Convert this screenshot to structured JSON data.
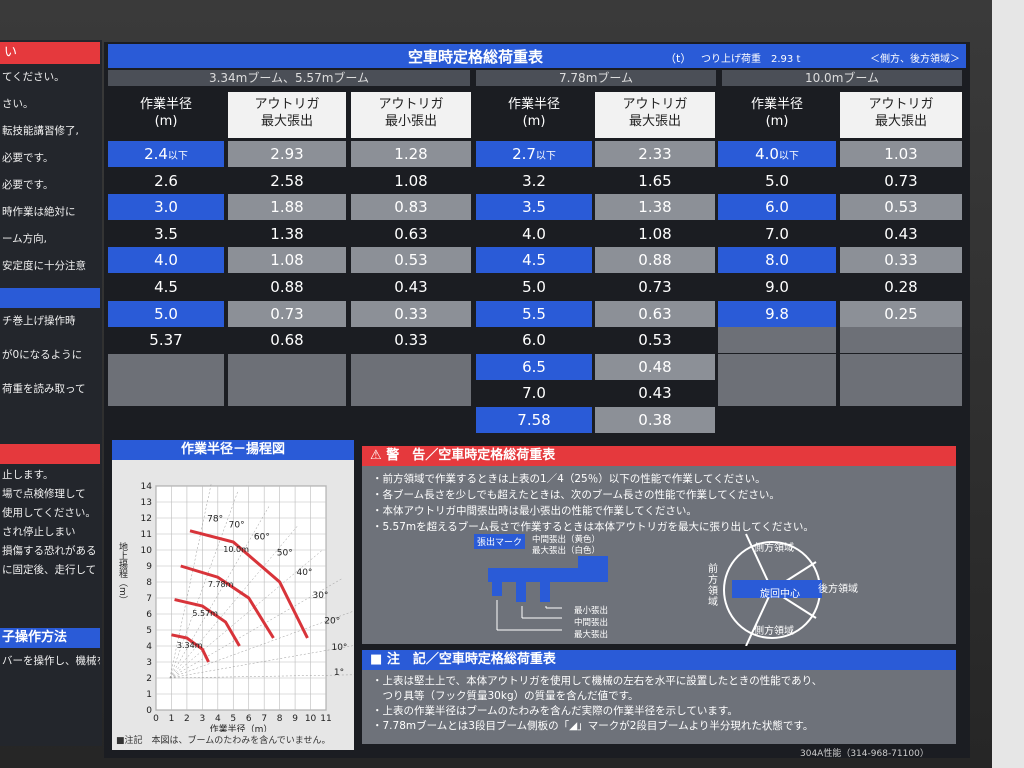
{
  "left_panel": {
    "top_header": "い",
    "lines_top": [
      "てください。",
      "さい。",
      "転技能講習修了,",
      "必要です。",
      "必要です。",
      "時作業は絶対に",
      "ーム方向,",
      "安定度に十分注意"
    ],
    "bar_mid": "",
    "lines_mid": [
      "チ巻上げ操作時",
      "が0になるように",
      "荷重を読み取って"
    ],
    "lines_bot": [
      "止します。",
      "場で点検修理して",
      "使用してください。",
      "され停止しまい",
      "損傷する恐れがある",
      "に固定後、走行して"
    ],
    "bar_bot": "子操作方法",
    "lines_last": [
      "バーを操作し、機械を"
    ]
  },
  "title": {
    "main": "空車時定格総荷重表",
    "unit": "（t）",
    "hook": "つり上げ荷重　2.93 t",
    "area": "＜側方、後方領域＞"
  },
  "sections": [
    "3.34mブーム、5.57mブーム",
    "7.78mブーム",
    "10.0mブーム"
  ],
  "headers": {
    "radius": [
      "作業半径",
      "(m)"
    ],
    "out_max": [
      "アウトリガ",
      "最大張出"
    ],
    "out_min": [
      "アウトリガ",
      "最小張出"
    ]
  },
  "table1": {
    "rows": [
      {
        "r": "2.4",
        "suf": "以下",
        "max": "2.93",
        "min": "1.28"
      },
      {
        "r": "2.6",
        "suf": "",
        "max": "2.58",
        "min": "1.08"
      },
      {
        "r": "3.0",
        "suf": "",
        "max": "1.88",
        "min": "0.83"
      },
      {
        "r": "3.5",
        "suf": "",
        "max": "1.38",
        "min": "0.63"
      },
      {
        "r": "4.0",
        "suf": "",
        "max": "1.08",
        "min": "0.53"
      },
      {
        "r": "4.5",
        "suf": "",
        "max": "0.88",
        "min": "0.43"
      },
      {
        "r": "5.0",
        "suf": "",
        "max": "0.73",
        "min": "0.33"
      },
      {
        "r": "5.37",
        "suf": "",
        "max": "0.68",
        "min": "0.33"
      }
    ]
  },
  "table2": {
    "rows": [
      {
        "r": "2.7",
        "suf": "以下",
        "max": "2.33"
      },
      {
        "r": "3.2",
        "suf": "",
        "max": "1.65"
      },
      {
        "r": "3.5",
        "suf": "",
        "max": "1.38"
      },
      {
        "r": "4.0",
        "suf": "",
        "max": "1.08"
      },
      {
        "r": "4.5",
        "suf": "",
        "max": "0.88"
      },
      {
        "r": "5.0",
        "suf": "",
        "max": "0.73"
      },
      {
        "r": "5.5",
        "suf": "",
        "max": "0.63"
      },
      {
        "r": "6.0",
        "suf": "",
        "max": "0.53"
      },
      {
        "r": "6.5",
        "suf": "",
        "max": "0.48"
      },
      {
        "r": "7.0",
        "suf": "",
        "max": "0.43"
      },
      {
        "r": "7.58",
        "suf": "",
        "max": "0.38"
      }
    ]
  },
  "table3": {
    "rows": [
      {
        "r": "4.0",
        "suf": "以下",
        "max": "1.03"
      },
      {
        "r": "5.0",
        "suf": "",
        "max": "0.73"
      },
      {
        "r": "6.0",
        "suf": "",
        "max": "0.53"
      },
      {
        "r": "7.0",
        "suf": "",
        "max": "0.43"
      },
      {
        "r": "8.0",
        "suf": "",
        "max": "0.33"
      },
      {
        "r": "9.0",
        "suf": "",
        "max": "0.28"
      },
      {
        "r": "9.8",
        "suf": "",
        "max": "0.25"
      }
    ]
  },
  "chart": {
    "title": "作業半径－揚程図",
    "ylabel": "地上揚程（m）",
    "xlabel": "作業半径（m）",
    "yticks": [
      "14",
      "13",
      "12",
      "11",
      "10",
      "9",
      "8",
      "7",
      "6",
      "5",
      "4",
      "3",
      "2",
      "1",
      "0"
    ],
    "xticks": [
      "0",
      "1",
      "2",
      "3",
      "4",
      "5",
      "6",
      "7",
      "8",
      "9",
      "10",
      "11"
    ],
    "angles": [
      "78°",
      "70°",
      "60°",
      "50°",
      "40°",
      "30°",
      "20°",
      "10°",
      "1°"
    ],
    "booms": [
      "3.34m",
      "5.57m",
      "7.78m",
      "10.0m"
    ],
    "footnote": "■注記　本図は、ブームのたわみを含んでいません。"
  },
  "chart_data": {
    "type": "line",
    "title": "作業半径－揚程図",
    "xlabel": "作業半径（m）",
    "ylabel": "地上揚程（m）",
    "xlim": [
      0,
      11
    ],
    "ylim": [
      0,
      14
    ],
    "series": [
      {
        "name": "3.34m",
        "x": [
          1.0,
          2.0,
          3.0,
          3.4
        ],
        "y": [
          4.7,
          4.5,
          3.8,
          3.0
        ]
      },
      {
        "name": "5.57m",
        "x": [
          1.2,
          3.0,
          4.5,
          5.4
        ],
        "y": [
          6.9,
          6.5,
          5.5,
          4.0
        ]
      },
      {
        "name": "7.78m",
        "x": [
          1.6,
          4.0,
          6.0,
          7.6
        ],
        "y": [
          9.0,
          8.3,
          7.0,
          4.5
        ]
      },
      {
        "name": "10.0m",
        "x": [
          2.2,
          5.0,
          8.0,
          9.8
        ],
        "y": [
          11.2,
          10.5,
          8.0,
          4.5
        ]
      }
    ]
  },
  "warning": {
    "header": "警　告／空車時定格総荷重表",
    "lines": [
      "・前方領域で作業するときは上表の1／4（25％）以下の性能で作業してください。",
      "・各ブーム長さを少しでも超えたときは、次のブーム長さの性能で作業してください。",
      "・本体アウトリガ中間張出時は最小張出の性能で作業してください。",
      "・5.57mを超えるブーム長さで作業するときは本体アウトリガを最大に張り出してください。"
    ],
    "mark_label": "張出マーク",
    "mark_mid": "中間張出（黄色）",
    "mark_max": "最大張出（白色）",
    "min_ext": "最小張出",
    "mid_ext": "中間張出",
    "max_ext": "最大張出",
    "front": "前方領域",
    "side_top": "側方領域",
    "side_bot": "側方領域",
    "rear": "後方領域",
    "center": "旋回中心"
  },
  "note": {
    "header": "注　記／空車時定格総荷重表",
    "lines": [
      "・上表は堅土上で、本体アウトリガを使用して機械の左右を水平に設置したときの性能であり、",
      "　つり具等（フック質量30kg）の質量を含んだ値です。",
      "・上表の作業半径はブームのたわみを含んだ実際の作業半径を示しています。",
      "・7.78mブームとは3段目ブーム側板の「◢」マークが2段目ブームより半分現れた状態です。"
    ]
  },
  "code": "304A性能（314-968-71100）",
  "colors": {
    "blue": "#2a5bd7",
    "red": "#e5393d",
    "gray": "#8c9097"
  }
}
